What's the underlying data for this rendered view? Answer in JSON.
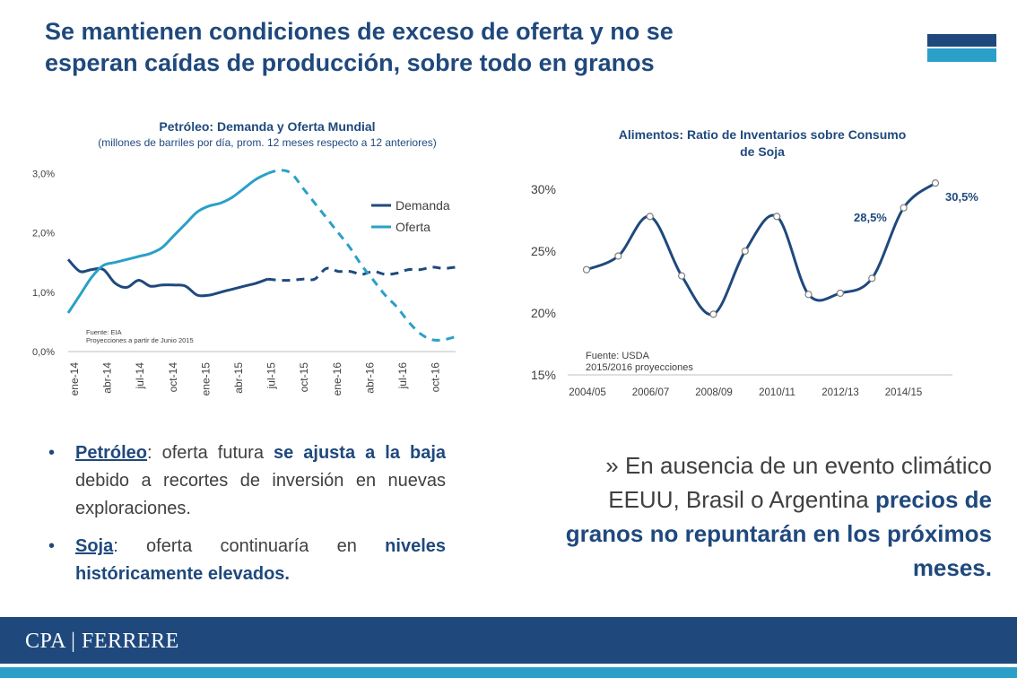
{
  "slide": {
    "title_line1": "Se mantienen condiciones de exceso de oferta y no se",
    "title_line2": "esperan caídas de producción, sobre todo en granos",
    "accent_dark": "#1f497d",
    "accent_light": "#2aa0c8"
  },
  "chart_data": [
    {
      "type": "line",
      "title": "Petróleo: Demanda y Oferta Mundial",
      "subtitle": "(millones de barriles por día, prom. 12 meses respecto a 12 anteriores)",
      "xlabel": "",
      "ylabel": "",
      "x_ticks": [
        "ene-14",
        "abr-14",
        "jul-14",
        "oct-14",
        "ene-15",
        "abr-15",
        "jul-15",
        "oct-15",
        "ene-16",
        "abr-16",
        "jul-16",
        "oct-16"
      ],
      "y_ticks": [
        "0,0%",
        "1,0%",
        "2,0%",
        "3,0%"
      ],
      "ylim": [
        0,
        3.2
      ],
      "grid": false,
      "legend": "right",
      "projection_start_index": 17,
      "series": [
        {
          "name": "Demanda",
          "color": "#1f497d",
          "values": [
            1.55,
            1.35,
            1.38,
            1.38,
            1.15,
            1.08,
            1.2,
            1.1,
            1.12,
            1.12,
            1.1,
            0.95,
            0.95,
            1.0,
            1.05,
            1.1,
            1.15,
            1.22,
            1.2,
            1.2,
            1.22,
            1.22,
            1.4,
            1.35,
            1.35,
            1.3,
            1.35,
            1.3,
            1.32,
            1.38,
            1.38,
            1.42,
            1.4,
            1.42
          ]
        },
        {
          "name": "Oferta",
          "color": "#2aa0c8",
          "values": [
            0.65,
            0.95,
            1.25,
            1.45,
            1.5,
            1.55,
            1.6,
            1.65,
            1.75,
            1.95,
            2.15,
            2.35,
            2.45,
            2.5,
            2.6,
            2.75,
            2.9,
            3.0,
            3.05,
            3.0,
            2.75,
            2.5,
            2.25,
            2.0,
            1.75,
            1.45,
            1.2,
            0.95,
            0.75,
            0.5,
            0.3,
            0.2,
            0.2,
            0.25
          ]
        }
      ],
      "notes": [
        "Fuente: EIA",
        "Proyecciones a partir de Junio 2015"
      ]
    },
    {
      "type": "line",
      "title": "Alimentos: Ratio de Inventarios sobre Consumo de Soja",
      "title_line1": "Alimentos: Ratio de Inventarios sobre Consumo",
      "title_line2": "de Soja",
      "xlabel": "",
      "ylabel": "",
      "x_ticks": [
        "2004/05",
        "2006/07",
        "2008/09",
        "2010/11",
        "2012/13",
        "2014/15"
      ],
      "y_ticks": [
        "15%",
        "20%",
        "25%",
        "30%"
      ],
      "ylim": [
        15,
        30.5
      ],
      "grid": false,
      "series": [
        {
          "name": "",
          "color": "#1f497d",
          "x": [
            "2004/05",
            "2005/06",
            "2006/07",
            "2007/08",
            "2008/09",
            "2009/10",
            "2010/11",
            "2011/12",
            "2012/13",
            "2013/14",
            "2014/15",
            "2015/16"
          ],
          "values": [
            23.5,
            24.6,
            27.8,
            23.0,
            19.9,
            25.0,
            27.8,
            21.5,
            21.6,
            22.8,
            28.5,
            30.5
          ]
        }
      ],
      "annotations": [
        "28,5%",
        "30,5%"
      ],
      "notes": [
        "Fuente: USDA",
        "2015/2016 proyecciones"
      ]
    }
  ],
  "bullets": [
    {
      "kw": "Petróleo",
      "p1": ": oferta futura ",
      "hl": "se ajusta a la baja",
      "p2": " debido a recortes de inversión en nuevas exploraciones."
    },
    {
      "kw": "Soja",
      "p1": ": oferta continuaría en ",
      "hl": "niveles históricamente elevados.",
      "p2": ""
    }
  ],
  "quote": {
    "lead": "» En ausencia de un evento climático EEUU, Brasil o Argentina ",
    "emph": "precios de granos no repuntarán en los próximos meses."
  },
  "footer": {
    "logo": "CPA | FERRERE"
  }
}
